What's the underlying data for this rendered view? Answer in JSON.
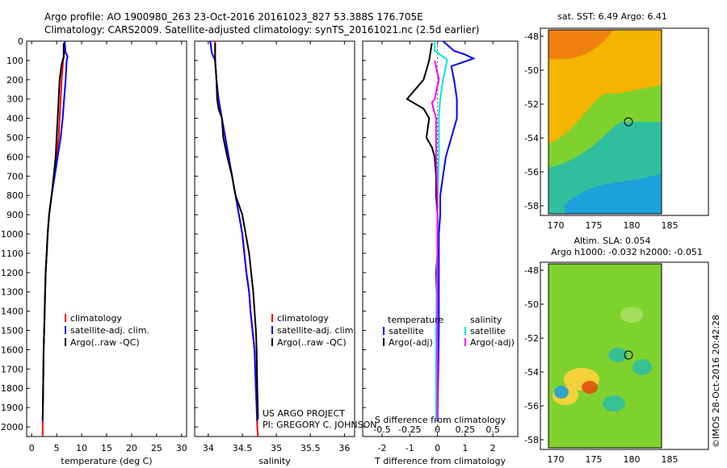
{
  "header": {
    "line1": "Argo profile: AO 1900980_263 23-Oct-2016 20161023_827 53.388S 176.705E",
    "line2": "Climatology: CARS2009. Satellite-adjusted climatology: synTS_20161021.nc (2.5d earlier)"
  },
  "colors": {
    "climatology": "#ff0000",
    "satellite": "#0000ff",
    "argo": "#000000",
    "sat_sal": "#00e5e5",
    "argo_sal": "#ff00ff"
  },
  "chart_data": [
    {
      "type": "line",
      "xlabel": "temperature (deg C)",
      "xlim": [
        -1,
        31
      ],
      "ylim": [
        2050,
        0
      ],
      "xticks": [
        0,
        5,
        10,
        15,
        20,
        25,
        30
      ],
      "yticks": [
        0,
        100,
        200,
        300,
        400,
        500,
        600,
        700,
        800,
        900,
        1000,
        1100,
        1200,
        1300,
        1400,
        1500,
        1600,
        1700,
        1800,
        1900,
        2000
      ],
      "legend": [
        "climatology",
        "satellite-adj. clim.",
        "Argo(..raw -QC)"
      ],
      "series": [
        {
          "name": "climatology",
          "color": "#ff0000",
          "points": [
            [
              6.6,
              0
            ],
            [
              6.6,
              50
            ],
            [
              6.3,
              100
            ],
            [
              6.0,
              200
            ],
            [
              5.8,
              300
            ],
            [
              5.6,
              400
            ],
            [
              5.4,
              500
            ],
            [
              5.0,
              600
            ],
            [
              4.6,
              700
            ],
            [
              4.0,
              800
            ],
            [
              3.5,
              900
            ],
            [
              3.2,
              1000
            ],
            [
              3.0,
              1100
            ],
            [
              2.8,
              1200
            ],
            [
              2.7,
              1300
            ],
            [
              2.6,
              1400
            ],
            [
              2.5,
              1500
            ],
            [
              2.4,
              1600
            ],
            [
              2.3,
              1800
            ],
            [
              2.2,
              2000
            ],
            [
              2.2,
              2050
            ]
          ]
        },
        {
          "name": "satellite-adj. clim.",
          "color": "#0000ff",
          "points": [
            [
              6.6,
              0
            ],
            [
              6.8,
              60
            ],
            [
              7.2,
              80
            ],
            [
              7.0,
              100
            ],
            [
              6.8,
              200
            ],
            [
              6.5,
              300
            ],
            [
              6.2,
              400
            ],
            [
              5.8,
              500
            ],
            [
              5.2,
              600
            ],
            [
              4.6,
              700
            ],
            [
              4.0,
              800
            ],
            [
              3.5,
              900
            ],
            [
              3.2,
              1000
            ],
            [
              3.0,
              1100
            ],
            [
              2.8,
              1200
            ],
            [
              2.6,
              1400
            ],
            [
              2.5,
              1500
            ],
            [
              2.4,
              1600
            ],
            [
              2.3,
              1800
            ],
            [
              2.2,
              1970
            ]
          ]
        },
        {
          "name": "Argo(..raw -QC)",
          "color": "#000000",
          "points": [
            [
              6.4,
              10
            ],
            [
              6.4,
              80
            ],
            [
              6.0,
              120
            ],
            [
              5.6,
              200
            ],
            [
              5.4,
              300
            ],
            [
              5.2,
              400
            ],
            [
              5.0,
              500
            ],
            [
              4.8,
              600
            ],
            [
              4.4,
              700
            ],
            [
              4.0,
              800
            ],
            [
              3.5,
              900
            ],
            [
              3.2,
              1000
            ],
            [
              3.0,
              1100
            ],
            [
              2.8,
              1200
            ],
            [
              2.6,
              1400
            ],
            [
              2.5,
              1500
            ],
            [
              2.4,
              1600
            ],
            [
              2.3,
              1800
            ],
            [
              2.2,
              1960
            ]
          ]
        }
      ]
    },
    {
      "type": "line",
      "xlabel": "salinity",
      "xlim": [
        33.8,
        36.15
      ],
      "ylim": [
        2050,
        0
      ],
      "xticks": [
        34,
        34.5,
        35,
        35.5,
        36
      ],
      "legend": [
        "climatology",
        "satellite-adj. clim.",
        "Argo(..raw -QC)"
      ],
      "annotations": [
        "US ARGO PROJECT",
        "PI: GREGORY C. JOHNSON"
      ],
      "series": [
        {
          "name": "climatology",
          "color": "#ff0000",
          "points": [
            [
              34.1,
              0
            ],
            [
              34.1,
              100
            ],
            [
              34.12,
              200
            ],
            [
              34.15,
              300
            ],
            [
              34.2,
              400
            ],
            [
              34.25,
              500
            ],
            [
              34.3,
              600
            ],
            [
              34.35,
              700
            ],
            [
              34.4,
              800
            ],
            [
              34.45,
              900
            ],
            [
              34.5,
              1000
            ],
            [
              34.53,
              1100
            ],
            [
              34.56,
              1200
            ],
            [
              34.6,
              1300
            ],
            [
              34.62,
              1400
            ],
            [
              34.65,
              1500
            ],
            [
              34.68,
              1600
            ],
            [
              34.7,
              1800
            ],
            [
              34.72,
              2000
            ],
            [
              34.73,
              2050
            ]
          ]
        },
        {
          "name": "satellite-adj. clim.",
          "color": "#0000ff",
          "points": [
            [
              34.03,
              0
            ],
            [
              34.05,
              60
            ],
            [
              34.1,
              100
            ],
            [
              34.12,
              200
            ],
            [
              34.15,
              300
            ],
            [
              34.2,
              400
            ],
            [
              34.25,
              500
            ],
            [
              34.3,
              600
            ],
            [
              34.35,
              700
            ],
            [
              34.4,
              800
            ],
            [
              34.45,
              900
            ],
            [
              34.5,
              1000
            ],
            [
              34.53,
              1100
            ],
            [
              34.56,
              1200
            ],
            [
              34.6,
              1300
            ],
            [
              34.62,
              1400
            ],
            [
              34.65,
              1500
            ],
            [
              34.68,
              1600
            ],
            [
              34.7,
              1800
            ],
            [
              34.72,
              1970
            ]
          ]
        },
        {
          "name": "Argo(..raw -QC)",
          "color": "#000000",
          "points": [
            [
              34.1,
              10
            ],
            [
              34.1,
              100
            ],
            [
              34.12,
              200
            ],
            [
              34.13,
              300
            ],
            [
              34.15,
              350
            ],
            [
              34.2,
              400
            ],
            [
              34.22,
              500
            ],
            [
              34.28,
              600
            ],
            [
              34.35,
              700
            ],
            [
              34.4,
              800
            ],
            [
              34.5,
              900
            ],
            [
              34.55,
              1000
            ],
            [
              34.6,
              1100
            ],
            [
              34.63,
              1200
            ],
            [
              34.66,
              1300
            ],
            [
              34.68,
              1400
            ],
            [
              34.7,
              1500
            ],
            [
              34.71,
              1600
            ],
            [
              34.72,
              1800
            ],
            [
              34.73,
              1960
            ]
          ]
        }
      ]
    },
    {
      "type": "line",
      "xlabel": "T difference from climatology",
      "x2label": "S difference from climatology",
      "xlim": [
        -2.7,
        2.9
      ],
      "ylim": [
        2050,
        0
      ],
      "xticks": [
        -2,
        -1,
        0,
        1,
        2
      ],
      "x2ticks": [
        -0.5,
        -0.25,
        0,
        0.25,
        0.5
      ],
      "legend_headers": [
        "temperature",
        "salinity"
      ],
      "legend": [
        "satellite",
        "Argo(-adj)",
        "satellite",
        "Argo(-adj)"
      ],
      "series": [
        {
          "name": "satellite",
          "color": "#0000ff",
          "points": [
            [
              0.2,
              0
            ],
            [
              0.6,
              50
            ],
            [
              1.0,
              70
            ],
            [
              1.3,
              90
            ],
            [
              1.1,
              100
            ],
            [
              0.5,
              130
            ],
            [
              0.6,
              200
            ],
            [
              0.7,
              300
            ],
            [
              0.7,
              400
            ],
            [
              0.5,
              500
            ],
            [
              0.3,
              600
            ],
            [
              0.2,
              700
            ],
            [
              0.1,
              800
            ],
            [
              0.1,
              900
            ],
            [
              0.05,
              1000
            ],
            [
              0.05,
              1500
            ],
            [
              0.0,
              1970
            ]
          ]
        },
        {
          "name": "Argo(-adj)",
          "color": "#000000",
          "points": [
            [
              -0.2,
              10
            ],
            [
              -0.3,
              100
            ],
            [
              -0.5,
              200
            ],
            [
              -0.8,
              250
            ],
            [
              -1.1,
              300
            ],
            [
              -0.5,
              350
            ],
            [
              -0.3,
              400
            ],
            [
              -0.4,
              500
            ],
            [
              -0.2,
              550
            ],
            [
              -0.1,
              600
            ],
            [
              -0.05,
              700
            ],
            [
              -0.05,
              800
            ],
            [
              0,
              900
            ],
            [
              0,
              1100
            ],
            [
              -0.05,
              1200
            ],
            [
              0,
              1500
            ],
            [
              0,
              1960
            ]
          ]
        },
        {
          "name": "sat salinity",
          "color": "#00e5e5",
          "points": [
            [
              -0.1,
              0
            ],
            [
              -0.1,
              50
            ],
            [
              0.1,
              70
            ],
            [
              0.3,
              90
            ],
            [
              0.35,
              100
            ],
            [
              0.2,
              200
            ],
            [
              0.1,
              300
            ],
            [
              0.05,
              400
            ],
            [
              0.05,
              600
            ],
            [
              0,
              800
            ],
            [
              0,
              1000
            ],
            [
              -0.05,
              1500
            ],
            [
              -0.05,
              1970
            ]
          ]
        },
        {
          "name": "argo salinity",
          "color": "#ff00ff",
          "points": [
            [
              -0.1,
              100
            ],
            [
              0.05,
              200
            ],
            [
              -0.1,
              300
            ],
            [
              -0.2,
              320
            ],
            [
              -0.05,
              400
            ],
            [
              -0.05,
              600
            ],
            [
              0,
              800
            ],
            [
              0,
              1000
            ],
            [
              0,
              1500
            ],
            [
              0,
              1960
            ]
          ]
        }
      ]
    }
  ],
  "maps": [
    {
      "title": "sat. SST: 6.49 Argo: 6.41",
      "yticks": [
        "-48",
        "-50",
        "-52",
        "-54",
        "-56",
        "-58"
      ],
      "xticks": [
        "170",
        "175",
        "180",
        "185"
      ]
    },
    {
      "title1": "Altim. SLA: 0.054",
      "title2": "Argo h1000: -0.032 h2000: -0.051",
      "yticks": [
        "-48",
        "-50",
        "-52",
        "-54",
        "-56",
        "-58"
      ],
      "xticks": [
        "170",
        "175",
        "180",
        "185"
      ]
    }
  ],
  "credit": "©IMOS 28-Oct-2016 20:42:28"
}
